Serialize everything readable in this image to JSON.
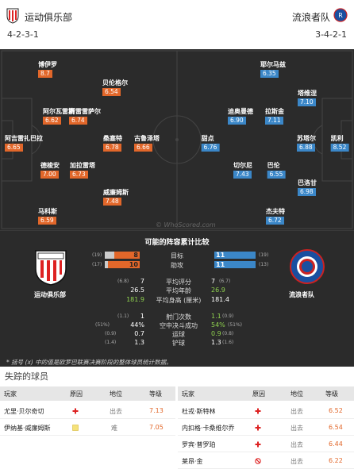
{
  "header": {
    "home_team": "运动俱乐部",
    "home_formation": "4-2-3-1",
    "away_team": "流浪者队",
    "away_formation": "3-4-2-1"
  },
  "colors": {
    "home": "#e2672a",
    "away": "#3b87c8",
    "pitch": "#2b2b2b"
  },
  "pitch": {
    "watermark": "© WhoScored.com",
    "home_players": [
      {
        "name": "博伊罗",
        "rating": "8.7"
      },
      {
        "name": "贝伦格尔",
        "rating": "6.54"
      },
      {
        "name": "阿尔瓦雷斯",
        "rating": "6.62"
      },
      {
        "name": "赛雷雷萨尔",
        "rating": "6.74"
      },
      {
        "name": "阿吉雷扎巴拉",
        "rating": "6.65"
      },
      {
        "name": "桑塞特",
        "rating": "6.78"
      },
      {
        "name": "古鲁泽塔",
        "rating": "6.66"
      },
      {
        "name": "德梭安",
        "rating": "7.00"
      },
      {
        "name": "加拉雷塔",
        "rating": "6.73"
      },
      {
        "name": "威廉姆斯",
        "rating": "7.48"
      },
      {
        "name": "马科斯",
        "rating": "6.59"
      }
    ],
    "away_players": [
      {
        "name": "耶尔马兹",
        "rating": "6.35"
      },
      {
        "name": "塔维涅",
        "rating": "7.10"
      },
      {
        "name": "迪奥曼德",
        "rating": "6.90"
      },
      {
        "name": "拉斯金",
        "rating": "7.11"
      },
      {
        "name": "甜点",
        "rating": "6.76"
      },
      {
        "name": "苏塔尔",
        "rating": "6.88"
      },
      {
        "name": "凯利",
        "rating": "8.52"
      },
      {
        "name": "切尔尼",
        "rating": "7.43"
      },
      {
        "name": "巴伦",
        "rating": "6.55"
      },
      {
        "name": "巴洛甘",
        "rating": "6.98"
      },
      {
        "name": "杰夫特",
        "rating": "6.72"
      }
    ]
  },
  "compare": {
    "title": "可能的阵容累计比较",
    "home_label": "运动俱乐部",
    "away_label": "流浪者队",
    "bars": [
      {
        "label": "目标",
        "home_rank": "(19)",
        "home_value": 8,
        "away_value": 11,
        "away_rank": "(19)"
      },
      {
        "label": "助攻",
        "home_rank": "(17)",
        "home_value": 10,
        "away_value": 11,
        "away_rank": "(13)"
      }
    ],
    "rows": [
      {
        "label": "平均评分",
        "home_rank": "(6.8)",
        "home_value": "7",
        "away_value": "7",
        "away_rank": "(6.7)"
      },
      {
        "label": "平均年龄",
        "home_rank": "",
        "home_value": "26.5",
        "away_value": "26.9",
        "away_rank": ""
      },
      {
        "label": "平均身高 (厘米)",
        "home_rank": "",
        "home_value": "181.9",
        "away_value": "181.4",
        "away_rank": ""
      },
      {
        "label": "射门次数",
        "home_rank": "(1.1)",
        "home_value": "1",
        "away_value": "1.1",
        "away_rank": "(0.9)"
      },
      {
        "label": "空中决斗成功",
        "home_rank": "(51%)",
        "home_value": "44%",
        "away_value": "54%",
        "away_rank": "(51%)"
      },
      {
        "label": "运球",
        "home_rank": "(0.9)",
        "home_value": "0.7",
        "away_value": "0.9",
        "away_rank": "(0.8)"
      },
      {
        "label": "铲球",
        "home_rank": "(1.4)",
        "home_value": "1.3",
        "away_value": "1.3",
        "away_rank": "(1.6)"
      }
    ],
    "footnote": "* 括号 (x) 中的值是欧罗巴联赛决赛阶段的整体球员统计数据。"
  },
  "missing": {
    "title": "失踪的球员",
    "headers": {
      "player": "玩家",
      "reason": "原因",
      "position": "地位",
      "rating": "等级"
    },
    "home": [
      {
        "player": "尤里·贝尔奇切",
        "reason": "injury",
        "position": "出去",
        "rating": "7.13"
      },
      {
        "player": "伊纳基·威廉姆斯",
        "reason": "doubt",
        "position": "难",
        "rating": "7.05"
      }
    ],
    "away": [
      {
        "player": "杜戎·斯特林",
        "reason": "injury",
        "position": "出去",
        "rating": "6.52"
      },
      {
        "player": "内扣格·卡桑维尔乔",
        "reason": "injury",
        "position": "出去",
        "rating": "6.54"
      },
      {
        "player": "罗宾·普罗珀",
        "reason": "injury",
        "position": "出去",
        "rating": "6.44"
      },
      {
        "player": "莱昂·金",
        "reason": "suspended",
        "position": "出去",
        "rating": "6.22"
      }
    ]
  }
}
